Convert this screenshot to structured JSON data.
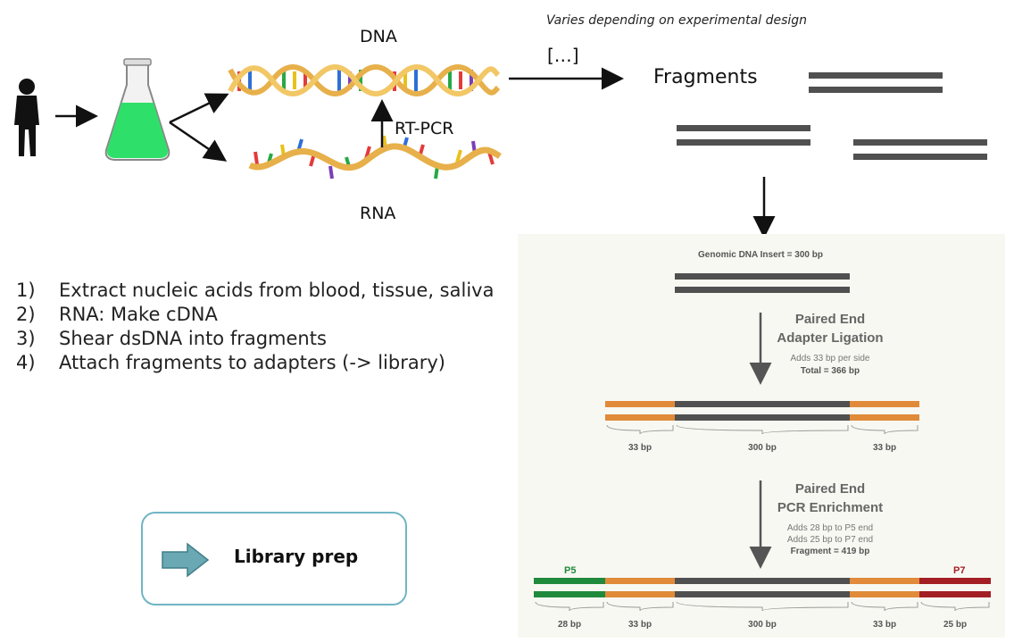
{
  "top": {
    "dna_label": "DNA",
    "rna_label": "RNA",
    "rtpcr_label": "RT-PCR",
    "note": "Varies depending on experimental design",
    "ellipsis": "[…]",
    "fragments_label": "Fragments"
  },
  "steps": [
    {
      "num": "1)",
      "text": "Extract nucleic acids from blood, tissue, saliva"
    },
    {
      "num": "2)",
      "text": "RNA: Make cDNA"
    },
    {
      "num": "3)",
      "text": "Shear dsDNA into fragments"
    },
    {
      "num": "4)",
      "text": "Attach fragments to adapters (-> library)"
    }
  ],
  "library_prep": {
    "label": "Library prep"
  },
  "panel": {
    "insert_label": "Genomic DNA Insert = 300 bp",
    "step1_title_1": "Paired End",
    "step1_title_2": "Adapter Ligation",
    "step1_desc": "Adds 33 bp per side",
    "step1_total": "Total = 366 bp",
    "seg1": [
      "33 bp",
      "300 bp",
      "33 bp"
    ],
    "step2_title_1": "Paired End",
    "step2_title_2": "PCR Enrichment",
    "step2_desc_1": "Adds 28 bp to P5 end",
    "step2_desc_2": "Adds 25 bp to P7 end",
    "step2_total": "Fragment = 419 bp",
    "p5": "P5",
    "p7": "P7",
    "seg2": [
      "28 bp",
      "33 bp",
      "300 bp",
      "33 bp",
      "25 bp"
    ]
  },
  "colors": {
    "adapter": "#e08a3a",
    "insert": "#505050",
    "p5": "#1f8a3c",
    "p7": "#a31f24",
    "flask_liquid": "#2ee06a",
    "box_border": "#6fb5c4",
    "arrow_fill": "#6aa9b3"
  }
}
